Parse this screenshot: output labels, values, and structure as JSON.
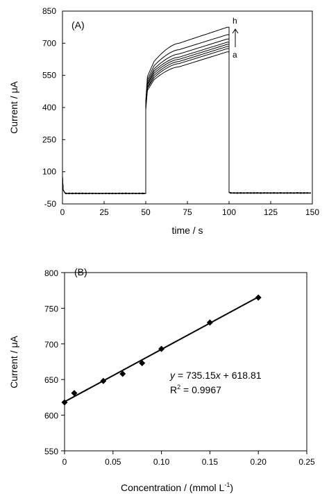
{
  "chart_data": [
    {
      "type": "line",
      "panel_label": "(A)",
      "xlabel": "time / s",
      "ylabel": "Current / μA",
      "xlim": [
        0,
        150
      ],
      "ylim": [
        -50,
        850
      ],
      "x_ticks": [
        "0",
        "25",
        "50",
        "75",
        "100",
        "125",
        "150"
      ],
      "y_ticks": [
        "-50",
        "100",
        "250",
        "400",
        "550",
        "700",
        "850"
      ],
      "grid": false,
      "step_on": 50,
      "step_off": 100,
      "baseline": -1,
      "series": [
        {
          "name": "a",
          "values_at_steps": {
            "50": 390,
            "51": 480,
            "55": 530,
            "70": 590,
            "99": 660
          }
        },
        {
          "values_at_steps": {
            "50": 395,
            "51": 490,
            "55": 540,
            "70": 605,
            "99": 675
          }
        },
        {
          "values_at_steps": {
            "50": 400,
            "51": 495,
            "55": 550,
            "70": 615,
            "99": 685
          }
        },
        {
          "values_at_steps": {
            "50": 405,
            "51": 505,
            "55": 560,
            "70": 625,
            "99": 695
          }
        },
        {
          "values_at_steps": {
            "50": 410,
            "51": 510,
            "55": 570,
            "70": 635,
            "99": 705
          }
        },
        {
          "values_at_steps": {
            "50": 415,
            "51": 520,
            "55": 580,
            "70": 650,
            "99": 720
          }
        },
        {
          "values_at_steps": {
            "50": 420,
            "51": 530,
            "55": 595,
            "70": 670,
            "99": 740
          }
        },
        {
          "name": "h",
          "values_at_steps": {
            "50": 430,
            "51": 545,
            "55": 615,
            "70": 700,
            "99": 775
          }
        }
      ],
      "annotations": [
        "h",
        "a"
      ]
    },
    {
      "type": "scatter",
      "panel_label": "(B)",
      "xlabel": "Concentration / (mmol L",
      "xlabel_sup": "-1",
      "xlabel_end": ")",
      "ylabel": "Current / μA",
      "xlim": [
        0,
        0.25
      ],
      "ylim": [
        550,
        800
      ],
      "x_ticks": [
        "0",
        "0.05",
        "0.10",
        "0.15",
        "0.20",
        "0.25"
      ],
      "x_tick_values": [
        0,
        0.05,
        0.1,
        0.15,
        0.2,
        0.25
      ],
      "y_ticks": [
        "550",
        "600",
        "650",
        "700",
        "750",
        "800"
      ],
      "grid": false,
      "x": [
        0.0,
        0.01,
        0.04,
        0.06,
        0.08,
        0.1,
        0.15,
        0.2
      ],
      "y": [
        618,
        631,
        648,
        658,
        673,
        693,
        730,
        765
      ],
      "fit": {
        "slope": 735.15,
        "intercept": 618.81,
        "x_range": [
          0,
          0.2
        ]
      },
      "equation_y": "y",
      "equation_rest": " = 735.15",
      "equation_x": "x",
      "equation_tail": " + 618.81",
      "r2_base": "R",
      "r2_sup": "2",
      "r2_value": " = 0.9967"
    }
  ]
}
